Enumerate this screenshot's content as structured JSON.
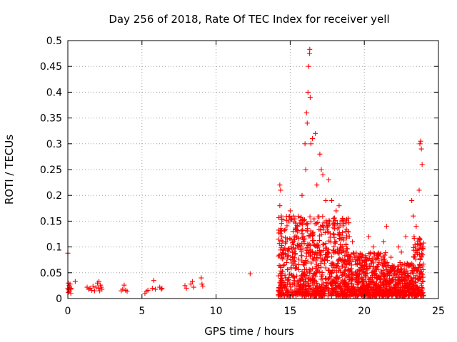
{
  "chart_data": {
    "type": "scatter",
    "title": "Day 256 of 2018, Rate Of TEC Index for receiver yell",
    "xlabel": "GPS time / hours",
    "ylabel": "ROTI / TECUs",
    "xlim": [
      0,
      25
    ],
    "ylim": [
      0,
      0.5
    ],
    "xticks": [
      0,
      5,
      10,
      15,
      20,
      25
    ],
    "xtick_labels": [
      "0",
      "5",
      "10",
      "15",
      "20",
      "25"
    ],
    "yticks": [
      0,
      0.05,
      0.1,
      0.15,
      0.2,
      0.25,
      0.3,
      0.35,
      0.4,
      0.45,
      0.5
    ],
    "ytick_labels": [
      "0",
      "0.05",
      "0.1",
      "0.15",
      "0.2",
      "0.25",
      "0.3",
      "0.35",
      "0.4",
      "0.45",
      "0.5"
    ],
    "grid": true,
    "marker": "+",
    "marker_color": "#ff0000",
    "series": [
      {
        "name": "ROTI",
        "points": [
          [
            0.0,
            0.088
          ],
          [
            0.0,
            0.02
          ],
          [
            0.02,
            0.012
          ],
          [
            0.03,
            0.03
          ],
          [
            0.05,
            0.017
          ],
          [
            0.08,
            0.025
          ],
          [
            0.1,
            0.014
          ],
          [
            0.12,
            0.022
          ],
          [
            0.15,
            0.028
          ],
          [
            0.18,
            0.018
          ],
          [
            0.2,
            0.01
          ],
          [
            0.22,
            0.02
          ],
          [
            0.5,
            0.033
          ],
          [
            1.3,
            0.022
          ],
          [
            1.4,
            0.018
          ],
          [
            1.5,
            0.02
          ],
          [
            1.6,
            0.016
          ],
          [
            1.7,
            0.024
          ],
          [
            1.8,
            0.015
          ],
          [
            1.9,
            0.022
          ],
          [
            2.0,
            0.03
          ],
          [
            2.05,
            0.02
          ],
          [
            2.1,
            0.033
          ],
          [
            2.15,
            0.015
          ],
          [
            2.2,
            0.026
          ],
          [
            2.25,
            0.022
          ],
          [
            2.3,
            0.018
          ],
          [
            3.6,
            0.015
          ],
          [
            3.7,
            0.018
          ],
          [
            3.8,
            0.026
          ],
          [
            3.9,
            0.016
          ],
          [
            4.0,
            0.014
          ],
          [
            5.2,
            0.01
          ],
          [
            5.3,
            0.014
          ],
          [
            5.4,
            0.016
          ],
          [
            5.7,
            0.02
          ],
          [
            5.8,
            0.035
          ],
          [
            5.9,
            0.018
          ],
          [
            6.2,
            0.022
          ],
          [
            6.3,
            0.018
          ],
          [
            6.35,
            0.02
          ],
          [
            7.9,
            0.025
          ],
          [
            8.0,
            0.02
          ],
          [
            8.3,
            0.028
          ],
          [
            8.4,
            0.033
          ],
          [
            8.5,
            0.022
          ],
          [
            9.0,
            0.04
          ],
          [
            9.05,
            0.028
          ],
          [
            9.1,
            0.024
          ],
          [
            12.3,
            0.048
          ],
          [
            14.3,
            0.22
          ],
          [
            14.35,
            0.21
          ],
          [
            14.3,
            0.18
          ],
          [
            14.4,
            0.16
          ],
          [
            15.0,
            0.17
          ],
          [
            15.5,
            0.14
          ],
          [
            15.8,
            0.2
          ],
          [
            16.0,
            0.3
          ],
          [
            16.05,
            0.25
          ],
          [
            16.1,
            0.36
          ],
          [
            16.15,
            0.34
          ],
          [
            16.2,
            0.4
          ],
          [
            16.25,
            0.45
          ],
          [
            16.3,
            0.475
          ],
          [
            16.32,
            0.483
          ],
          [
            16.35,
            0.39
          ],
          [
            16.4,
            0.3
          ],
          [
            16.5,
            0.31
          ],
          [
            16.7,
            0.32
          ],
          [
            16.8,
            0.22
          ],
          [
            17.0,
            0.28
          ],
          [
            17.1,
            0.25
          ],
          [
            17.2,
            0.24
          ],
          [
            17.4,
            0.19
          ],
          [
            17.6,
            0.23
          ],
          [
            17.8,
            0.19
          ],
          [
            18.1,
            0.17
          ],
          [
            18.3,
            0.18
          ],
          [
            18.6,
            0.15
          ],
          [
            18.9,
            0.13
          ],
          [
            19.2,
            0.11
          ],
          [
            19.5,
            0.08
          ],
          [
            20.0,
            0.07
          ],
          [
            20.3,
            0.12
          ],
          [
            20.6,
            0.1
          ],
          [
            21.0,
            0.07
          ],
          [
            21.3,
            0.11
          ],
          [
            21.5,
            0.14
          ],
          [
            21.8,
            0.08
          ],
          [
            22.0,
            0.06
          ],
          [
            22.3,
            0.1
          ],
          [
            22.5,
            0.09
          ],
          [
            22.8,
            0.12
          ],
          [
            23.2,
            0.19
          ],
          [
            23.3,
            0.16
          ],
          [
            23.5,
            0.14
          ],
          [
            23.6,
            0.11
          ],
          [
            23.7,
            0.21
          ],
          [
            23.75,
            0.3
          ],
          [
            23.8,
            0.305
          ],
          [
            23.85,
            0.29
          ],
          [
            23.9,
            0.26
          ],
          [
            23.95,
            0.1
          ]
        ],
        "dense_regions": [
          {
            "x_from": 14.2,
            "x_to": 24.0,
            "y_from": 0.005,
            "y_to": 0.16,
            "density": "high"
          }
        ]
      }
    ]
  }
}
